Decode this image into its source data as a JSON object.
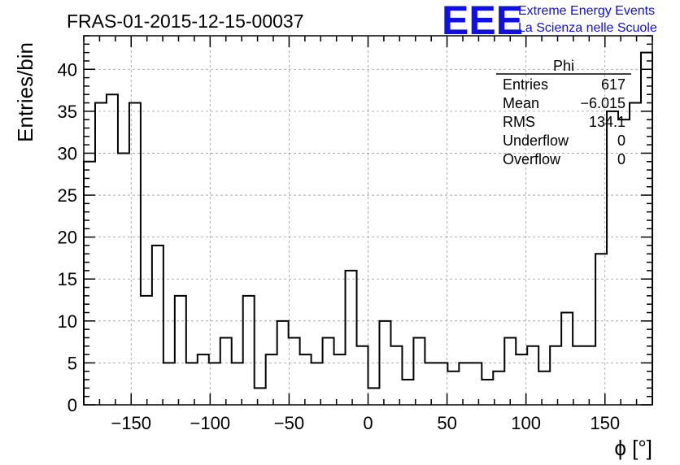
{
  "chart_data": {
    "type": "bar",
    "title": "FRAS-01-2015-12-15-00037",
    "xlabel": "ϕ [°]",
    "ylabel": "Entries/bin",
    "xlim": [
      -180,
      180
    ],
    "ylim": [
      0,
      44
    ],
    "x_ticks": [
      -150,
      -100,
      -50,
      0,
      50,
      100,
      150
    ],
    "x_tick_labels": [
      "−150",
      "−100",
      "−50",
      "0",
      "50",
      "100",
      "150"
    ],
    "y_ticks": [
      0,
      5,
      10,
      15,
      20,
      25,
      30,
      35,
      40
    ],
    "y_tick_labels": [
      "0",
      "5",
      "10",
      "15",
      "20",
      "25",
      "30",
      "35",
      "40"
    ],
    "grid": true,
    "bin_edges_start": -180,
    "bin_width": 7.2,
    "values": [
      29,
      36,
      37,
      30,
      36,
      13,
      19,
      5,
      13,
      5,
      6,
      5,
      8,
      5,
      13,
      2,
      6,
      10,
      8,
      6,
      5,
      8,
      6,
      16,
      7,
      2,
      10,
      7,
      3,
      8,
      5,
      5,
      4,
      5,
      5,
      3,
      4,
      8,
      6,
      7,
      4,
      7,
      11,
      7,
      7,
      18,
      35,
      34,
      36,
      42
    ],
    "line_color": "#000000",
    "legend": {
      "position": "top-right",
      "title": "Phi",
      "rows": [
        {
          "label": "Entries",
          "value": "617"
        },
        {
          "label": "Mean",
          "value": "−6.015"
        },
        {
          "label": "RMS",
          "value": "134.1"
        },
        {
          "label": "Underflow",
          "value": "0"
        },
        {
          "label": "Overflow",
          "value": "0"
        }
      ]
    }
  },
  "logo": {
    "mark": "EEE",
    "line1": "Extreme Energy Events",
    "line2": "La Scienza nelle Scuole",
    "color": "#1010e0"
  }
}
